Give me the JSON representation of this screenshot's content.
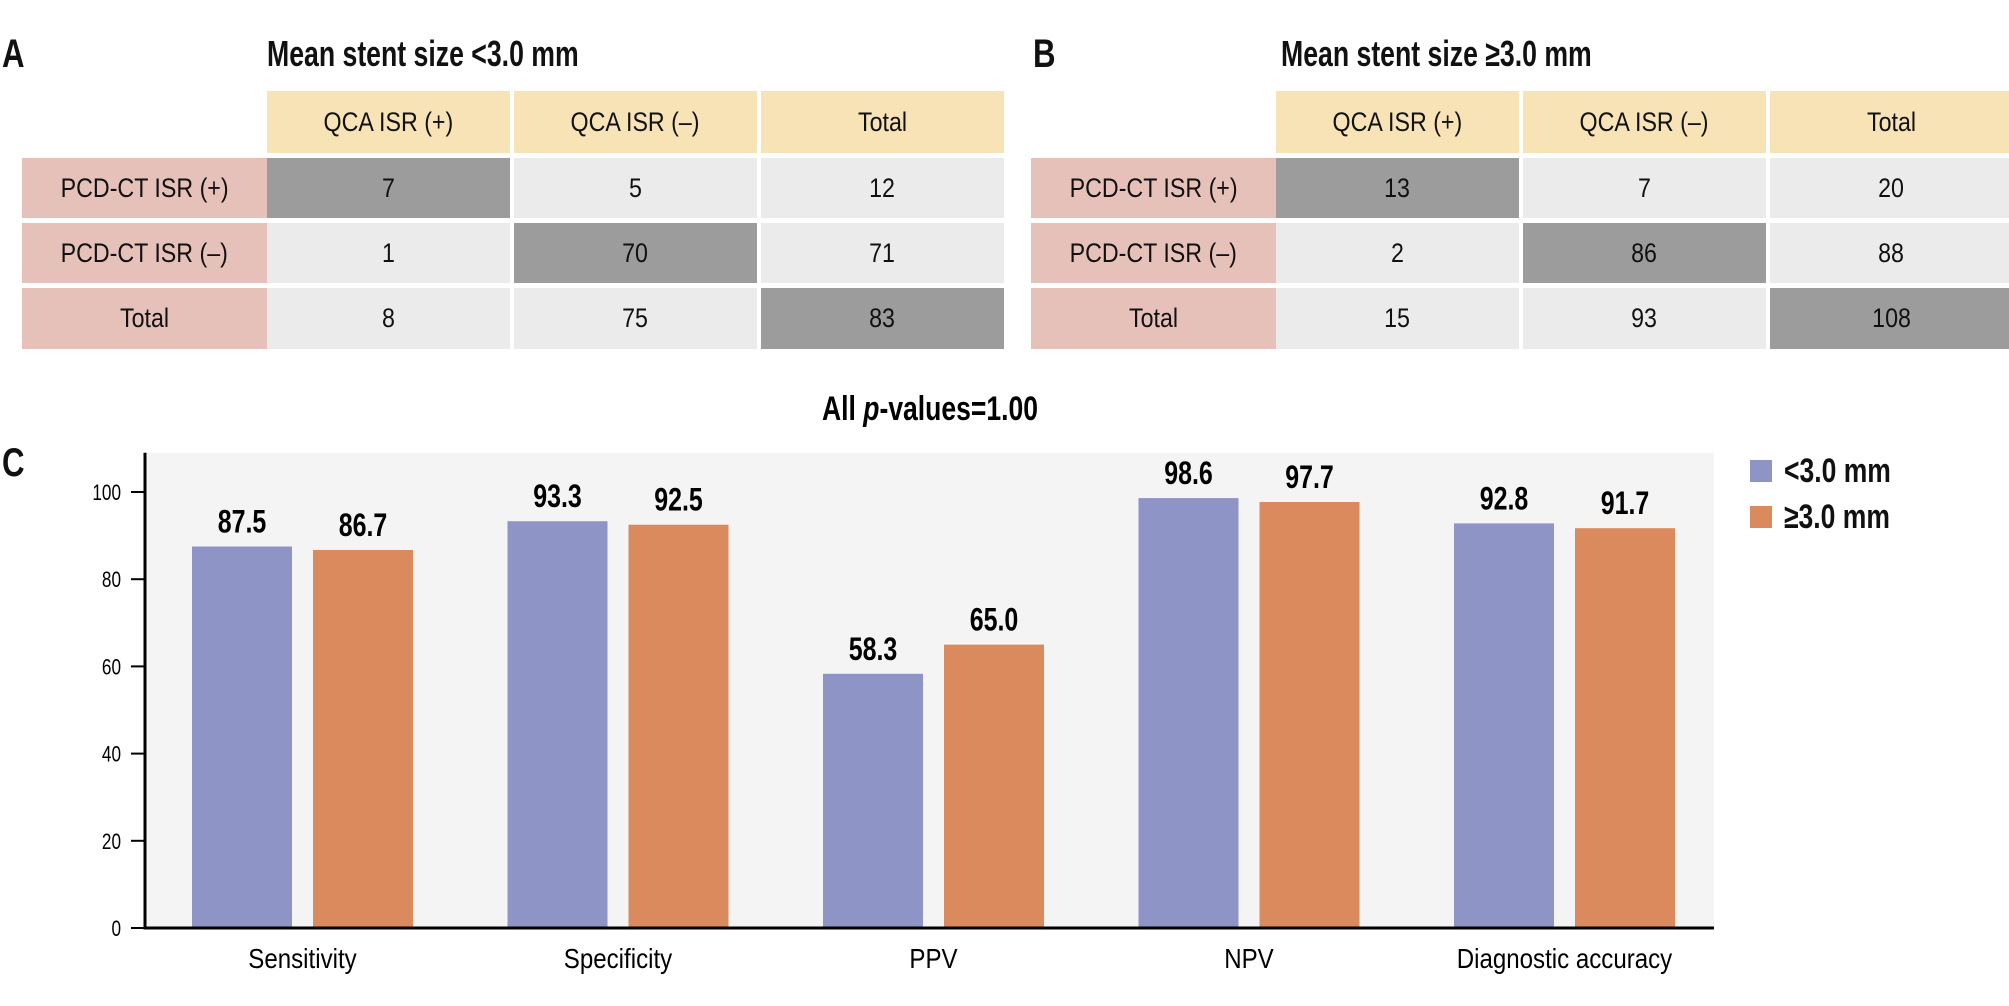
{
  "panels": {
    "A": {
      "letter": "A",
      "title": "Mean stent size <3.0 mm",
      "col_headers": [
        "QCA ISR (+)",
        "QCA ISR (–)",
        "Total"
      ],
      "rows": [
        {
          "label": "PCD-CT ISR (+)",
          "values": [
            "7",
            "5",
            "12"
          ],
          "highlight": [
            true,
            false,
            false
          ]
        },
        {
          "label": "PCD-CT ISR (–)",
          "values": [
            "1",
            "70",
            "71"
          ],
          "highlight": [
            false,
            true,
            false
          ]
        },
        {
          "label": "Total",
          "values": [
            "8",
            "75",
            "83"
          ],
          "highlight": [
            false,
            false,
            true
          ]
        }
      ]
    },
    "B": {
      "letter": "B",
      "title": "Mean stent size ≥3.0 mm",
      "col_headers": [
        "QCA ISR (+)",
        "QCA ISR (–)",
        "Total"
      ],
      "rows": [
        {
          "label": "PCD-CT ISR (+)",
          "values": [
            "13",
            "7",
            "20"
          ],
          "highlight": [
            true,
            false,
            false
          ]
        },
        {
          "label": "PCD-CT ISR (–)",
          "values": [
            "2",
            "86",
            "88"
          ],
          "highlight": [
            false,
            true,
            false
          ]
        },
        {
          "label": "Total",
          "values": [
            "15",
            "93",
            "108"
          ],
          "highlight": [
            false,
            false,
            true
          ]
        }
      ]
    },
    "C": {
      "letter": "C"
    }
  },
  "colors": {
    "header": "#F7E3B5",
    "row_label": "#E6C1B9",
    "cell_light": "#EBEBEB",
    "cell_dark": "#9C9C9C",
    "plot_bg": "#F4F4F4",
    "series_small": "#8E94C6",
    "series_large": "#DB8A5E"
  },
  "chart_data": {
    "type": "bar",
    "title": "All p-values=1.00",
    "title_parts": {
      "prefix": "All ",
      "italic": "p",
      "suffix": "-values=1.00"
    },
    "xlabel": "",
    "ylabel": "",
    "categories": [
      "Sensitivity",
      "Specificity",
      "PPV",
      "NPV",
      "Diagnostic accuracy"
    ],
    "series": [
      {
        "name": "<3.0 mm",
        "values": [
          87.5,
          93.3,
          58.3,
          98.6,
          92.8
        ],
        "color": "#8E94C6"
      },
      {
        "name": "≥3.0 mm",
        "values": [
          86.7,
          92.5,
          65.0,
          97.7,
          91.7
        ],
        "color": "#DB8A5E"
      }
    ],
    "value_labels": [
      [
        "87.5",
        "93.3",
        "58.3",
        "98.6",
        "92.8"
      ],
      [
        "86.7",
        "92.5",
        "65.0",
        "97.7",
        "91.7"
      ]
    ],
    "yticks": [
      0,
      20,
      40,
      60,
      80,
      100
    ],
    "ylim": [
      0,
      109
    ],
    "grid": false,
    "legend": "right"
  }
}
